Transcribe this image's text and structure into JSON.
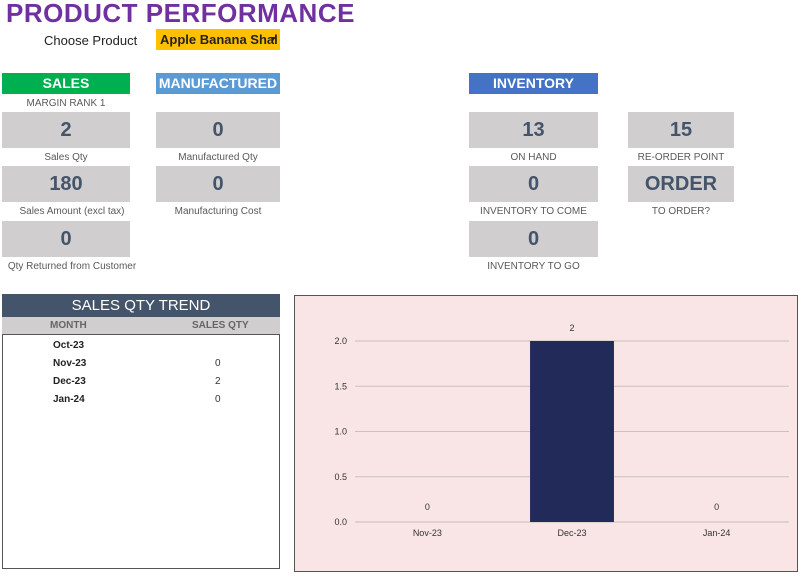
{
  "header": {
    "title": "PRODUCT PERFORMANCE"
  },
  "selector": {
    "label": "Choose Product",
    "value": "Apple Banana Shal"
  },
  "sales": {
    "heading": "SALES",
    "margin_rank": "MARGIN RANK 1",
    "qty": {
      "value": "2",
      "label": "Sales Qty"
    },
    "amount": {
      "value": "180",
      "label": "Sales Amount (excl tax)"
    },
    "returned": {
      "value": "0",
      "label": "Qty Returned from Customer"
    }
  },
  "manufactured": {
    "heading": "MANUFACTURED",
    "qty": {
      "value": "0",
      "label": "Manufactured Qty"
    },
    "cost": {
      "value": "0",
      "label": "Manufacturing Cost"
    }
  },
  "inventory": {
    "heading": "INVENTORY",
    "on_hand": {
      "value": "13",
      "label": "ON HAND"
    },
    "reorder_point": {
      "value": "15",
      "label": "RE-ORDER POINT"
    },
    "to_come": {
      "value": "0",
      "label": "INVENTORY TO COME"
    },
    "to_order": {
      "value": "ORDER",
      "label": "TO ORDER?"
    },
    "to_go": {
      "value": "0",
      "label": "INVENTORY TO GO"
    }
  },
  "trend": {
    "title": "SALES QTY TREND",
    "col_month": "MONTH",
    "col_qty": "SALES QTY",
    "rows": [
      {
        "month": "Oct-23",
        "qty": ""
      },
      {
        "month": "Nov-23",
        "qty": "0"
      },
      {
        "month": "Dec-23",
        "qty": "2"
      },
      {
        "month": "Jan-24",
        "qty": "0"
      }
    ]
  },
  "colors": {
    "title": "#7030a0",
    "sales": "#00b050",
    "manufactured": "#5b9bd5",
    "inventory": "#4472c4",
    "bar": "#222a5a",
    "chart_bg": "#f9e5e5"
  },
  "chart_data": {
    "type": "bar",
    "categories": [
      "Nov-23",
      "Dec-23",
      "Jan-24"
    ],
    "values": [
      0,
      2,
      0
    ],
    "data_labels": [
      "0",
      "2",
      "0"
    ],
    "title": "",
    "xlabel": "",
    "ylabel": "",
    "ylim": [
      0,
      2.0
    ],
    "yticks": [
      "0.0",
      "0.5",
      "1.0",
      "1.5",
      "2.0"
    ],
    "grid": true,
    "legend": "none"
  }
}
